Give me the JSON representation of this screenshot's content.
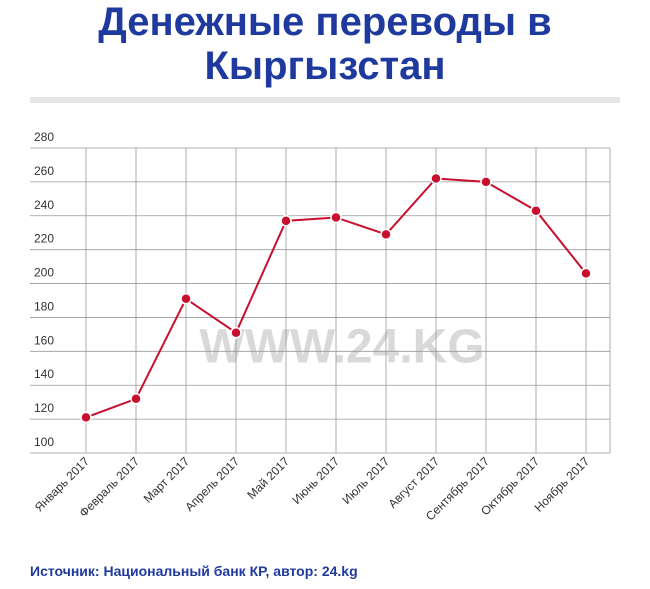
{
  "chart_data": {
    "type": "line",
    "title": "Денежные переводы в Кыргызстан",
    "watermark": "WWW.24.KG",
    "source": "Источник: Национальный банк КР, автор: 24.kg",
    "categories": [
      "Январь 2017",
      "Февраль 2017",
      "Март 2017",
      "Апрель 2017",
      "Май 2017",
      "Июнь 2017",
      "Июль 2017",
      "Август 2017",
      "Сентябрь 2017",
      "Октябрь 2017",
      "Ноябрь 2017"
    ],
    "series": [
      {
        "color": "#c8102e",
        "values": [
          121,
          132,
          191,
          171,
          237,
          239,
          229,
          262,
          260,
          243,
          206
        ]
      }
    ],
    "ylim": [
      100,
      280
    ],
    "yticks": [
      100,
      120,
      140,
      160,
      180,
      200,
      220,
      240,
      260,
      280
    ],
    "grid": true
  }
}
